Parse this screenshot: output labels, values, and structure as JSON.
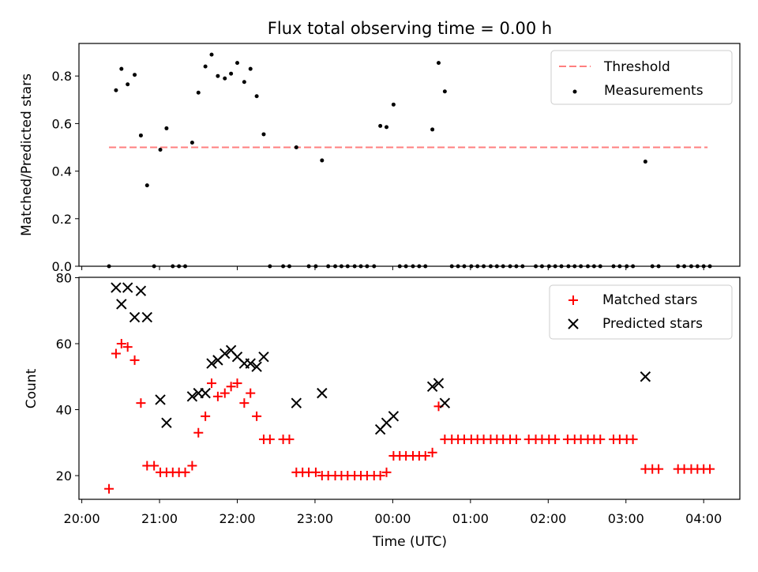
{
  "figure": {
    "title": "Flux total observing time = 0.00 h",
    "xlabel": "Time (UTC)",
    "x_unit": "hours after 20:00 UTC"
  },
  "chart_data": [
    {
      "type": "scatter",
      "title": "Flux total observing time = 0.00 h",
      "ylabel": "Matched/Predicted stars",
      "xlabel": "",
      "xlim_hours": [
        -0.05,
        8.5
      ],
      "ylim": [
        0,
        0.93
      ],
      "yticks": [
        0,
        0.2,
        0.4,
        0.6,
        0.8
      ],
      "ytick_labels": [
        "0.0",
        "0.2",
        "0.4",
        "0.6",
        "0.8"
      ],
      "legend": "top-right",
      "threshold": {
        "name": "Threshold",
        "value": 0.5,
        "x_range": [
          0.35,
          8.05
        ],
        "color": "#ff7f7f",
        "style": "dashed"
      },
      "series": [
        {
          "name": "Measurements",
          "marker": "dot",
          "color": "#000000",
          "points": [
            [
              0.35,
              0
            ],
            [
              0.44,
              0.74
            ],
            [
              0.51,
              0.83
            ],
            [
              0.59,
              0.765
            ],
            [
              0.68,
              0.805
            ],
            [
              0.76,
              0.55
            ],
            [
              0.84,
              0.34
            ],
            [
              0.93,
              0
            ],
            [
              1.01,
              0.49
            ],
            [
              1.09,
              0.58
            ],
            [
              1.17,
              0
            ],
            [
              1.25,
              0
            ],
            [
              1.33,
              0
            ],
            [
              1.42,
              0.52
            ],
            [
              1.5,
              0.73
            ],
            [
              1.59,
              0.84
            ],
            [
              1.67,
              0.89
            ],
            [
              1.75,
              0.8
            ],
            [
              1.84,
              0.79
            ],
            [
              1.92,
              0.81
            ],
            [
              2.0,
              0.855
            ],
            [
              2.09,
              0.775
            ],
            [
              2.17,
              0.83
            ],
            [
              2.25,
              0.715
            ],
            [
              2.34,
              0.555
            ],
            [
              2.42,
              0
            ],
            [
              2.59,
              0
            ],
            [
              2.67,
              0
            ],
            [
              2.76,
              0.5
            ],
            [
              2.92,
              0
            ],
            [
              3.01,
              0
            ],
            [
              3.09,
              0.445
            ],
            [
              3.17,
              0
            ],
            [
              3.26,
              0
            ],
            [
              3.34,
              0
            ],
            [
              3.42,
              0
            ],
            [
              3.51,
              0
            ],
            [
              3.59,
              0
            ],
            [
              3.67,
              0
            ],
            [
              3.76,
              0
            ],
            [
              3.84,
              0.59
            ],
            [
              3.92,
              0.585
            ],
            [
              4.01,
              0.68
            ],
            [
              4.09,
              0
            ],
            [
              4.17,
              0
            ],
            [
              4.26,
              0
            ],
            [
              4.34,
              0
            ],
            [
              4.42,
              0
            ],
            [
              4.51,
              0.575
            ],
            [
              4.59,
              0.855
            ],
            [
              4.67,
              0.735
            ],
            [
              4.76,
              0
            ],
            [
              4.84,
              0
            ],
            [
              4.92,
              0
            ],
            [
              5.01,
              0
            ],
            [
              5.09,
              0
            ],
            [
              5.17,
              0
            ],
            [
              5.26,
              0
            ],
            [
              5.34,
              0
            ],
            [
              5.42,
              0
            ],
            [
              5.51,
              0
            ],
            [
              5.59,
              0
            ],
            [
              5.67,
              0
            ],
            [
              5.84,
              0
            ],
            [
              5.92,
              0
            ],
            [
              6.01,
              0
            ],
            [
              6.09,
              0
            ],
            [
              6.17,
              0
            ],
            [
              6.26,
              0
            ],
            [
              6.34,
              0
            ],
            [
              6.42,
              0
            ],
            [
              6.51,
              0
            ],
            [
              6.59,
              0
            ],
            [
              6.67,
              0
            ],
            [
              6.84,
              0
            ],
            [
              6.92,
              0
            ],
            [
              7.01,
              0
            ],
            [
              7.09,
              0
            ],
            [
              7.25,
              0.44
            ],
            [
              7.34,
              0
            ],
            [
              7.42,
              0
            ],
            [
              7.67,
              0
            ],
            [
              7.75,
              0
            ],
            [
              7.84,
              0
            ],
            [
              7.92,
              0
            ],
            [
              8.0,
              0
            ],
            [
              8.08,
              0
            ]
          ]
        }
      ]
    },
    {
      "type": "scatter",
      "ylabel": "Count",
      "xlabel": "Time (UTC)",
      "xlim_hours": [
        -0.05,
        8.5
      ],
      "ylim": [
        13,
        80
      ],
      "yticks": [
        20,
        40,
        60,
        80
      ],
      "ytick_labels": [
        "20",
        "40",
        "60",
        "80"
      ],
      "xticks_hours": [
        0,
        1,
        2,
        3,
        4,
        5,
        6,
        7,
        8
      ],
      "xtick_labels": [
        "20:00",
        "21:00",
        "22:00",
        "23:00",
        "00:00",
        "01:00",
        "02:00",
        "03:00",
        "04:00"
      ],
      "legend": "top-right",
      "series": [
        {
          "name": "Matched stars",
          "marker": "plus",
          "color": "#ff0000",
          "points": [
            [
              0.35,
              16
            ],
            [
              0.44,
              57
            ],
            [
              0.51,
              60
            ],
            [
              0.59,
              59
            ],
            [
              0.68,
              55
            ],
            [
              0.76,
              42
            ],
            [
              0.84,
              23
            ],
            [
              0.93,
              23
            ],
            [
              1.01,
              21
            ],
            [
              1.09,
              21
            ],
            [
              1.17,
              21
            ],
            [
              1.25,
              21
            ],
            [
              1.33,
              21
            ],
            [
              1.42,
              23
            ],
            [
              1.5,
              33
            ],
            [
              1.59,
              38
            ],
            [
              1.67,
              48
            ],
            [
              1.75,
              44
            ],
            [
              1.84,
              45
            ],
            [
              1.92,
              47
            ],
            [
              2.0,
              48
            ],
            [
              2.09,
              42
            ],
            [
              2.17,
              45
            ],
            [
              2.25,
              38
            ],
            [
              2.34,
              31
            ],
            [
              2.42,
              31
            ],
            [
              2.59,
              31
            ],
            [
              2.67,
              31
            ],
            [
              2.76,
              21
            ],
            [
              2.84,
              21
            ],
            [
              2.92,
              21
            ],
            [
              3.01,
              21
            ],
            [
              3.09,
              20
            ],
            [
              3.17,
              20
            ],
            [
              3.26,
              20
            ],
            [
              3.34,
              20
            ],
            [
              3.42,
              20
            ],
            [
              3.51,
              20
            ],
            [
              3.59,
              20
            ],
            [
              3.67,
              20
            ],
            [
              3.76,
              20
            ],
            [
              3.84,
              20
            ],
            [
              3.92,
              21
            ],
            [
              4.01,
              26
            ],
            [
              4.09,
              26
            ],
            [
              4.17,
              26
            ],
            [
              4.26,
              26
            ],
            [
              4.34,
              26
            ],
            [
              4.42,
              26
            ],
            [
              4.51,
              27
            ],
            [
              4.59,
              41
            ],
            [
              4.67,
              31
            ],
            [
              4.76,
              31
            ],
            [
              4.84,
              31
            ],
            [
              4.92,
              31
            ],
            [
              5.01,
              31
            ],
            [
              5.09,
              31
            ],
            [
              5.17,
              31
            ],
            [
              5.26,
              31
            ],
            [
              5.34,
              31
            ],
            [
              5.42,
              31
            ],
            [
              5.51,
              31
            ],
            [
              5.59,
              31
            ],
            [
              5.75,
              31
            ],
            [
              5.84,
              31
            ],
            [
              5.92,
              31
            ],
            [
              6.01,
              31
            ],
            [
              6.09,
              31
            ],
            [
              6.25,
              31
            ],
            [
              6.34,
              31
            ],
            [
              6.42,
              31
            ],
            [
              6.51,
              31
            ],
            [
              6.59,
              31
            ],
            [
              6.67,
              31
            ],
            [
              6.84,
              31
            ],
            [
              6.92,
              31
            ],
            [
              7.01,
              31
            ],
            [
              7.09,
              31
            ],
            [
              7.25,
              22
            ],
            [
              7.34,
              22
            ],
            [
              7.42,
              22
            ],
            [
              7.67,
              22
            ],
            [
              7.75,
              22
            ],
            [
              7.84,
              22
            ],
            [
              7.92,
              22
            ],
            [
              8.0,
              22
            ],
            [
              8.08,
              22
            ]
          ]
        },
        {
          "name": "Predicted stars",
          "marker": "x",
          "color": "#000000",
          "points": [
            [
              0.44,
              77
            ],
            [
              0.51,
              72
            ],
            [
              0.59,
              77
            ],
            [
              0.68,
              68
            ],
            [
              0.76,
              76
            ],
            [
              0.84,
              68
            ],
            [
              1.01,
              43
            ],
            [
              1.09,
              36
            ],
            [
              1.42,
              44
            ],
            [
              1.5,
              45
            ],
            [
              1.59,
              45
            ],
            [
              1.67,
              54
            ],
            [
              1.75,
              55
            ],
            [
              1.84,
              57
            ],
            [
              1.92,
              58
            ],
            [
              2.0,
              56
            ],
            [
              2.09,
              54
            ],
            [
              2.17,
              54
            ],
            [
              2.25,
              53
            ],
            [
              2.34,
              56
            ],
            [
              2.76,
              42
            ],
            [
              3.09,
              45
            ],
            [
              3.84,
              34
            ],
            [
              3.92,
              36
            ],
            [
              4.01,
              38
            ],
            [
              4.51,
              47
            ],
            [
              4.59,
              48
            ],
            [
              4.67,
              42
            ],
            [
              7.25,
              50
            ]
          ]
        }
      ]
    }
  ]
}
